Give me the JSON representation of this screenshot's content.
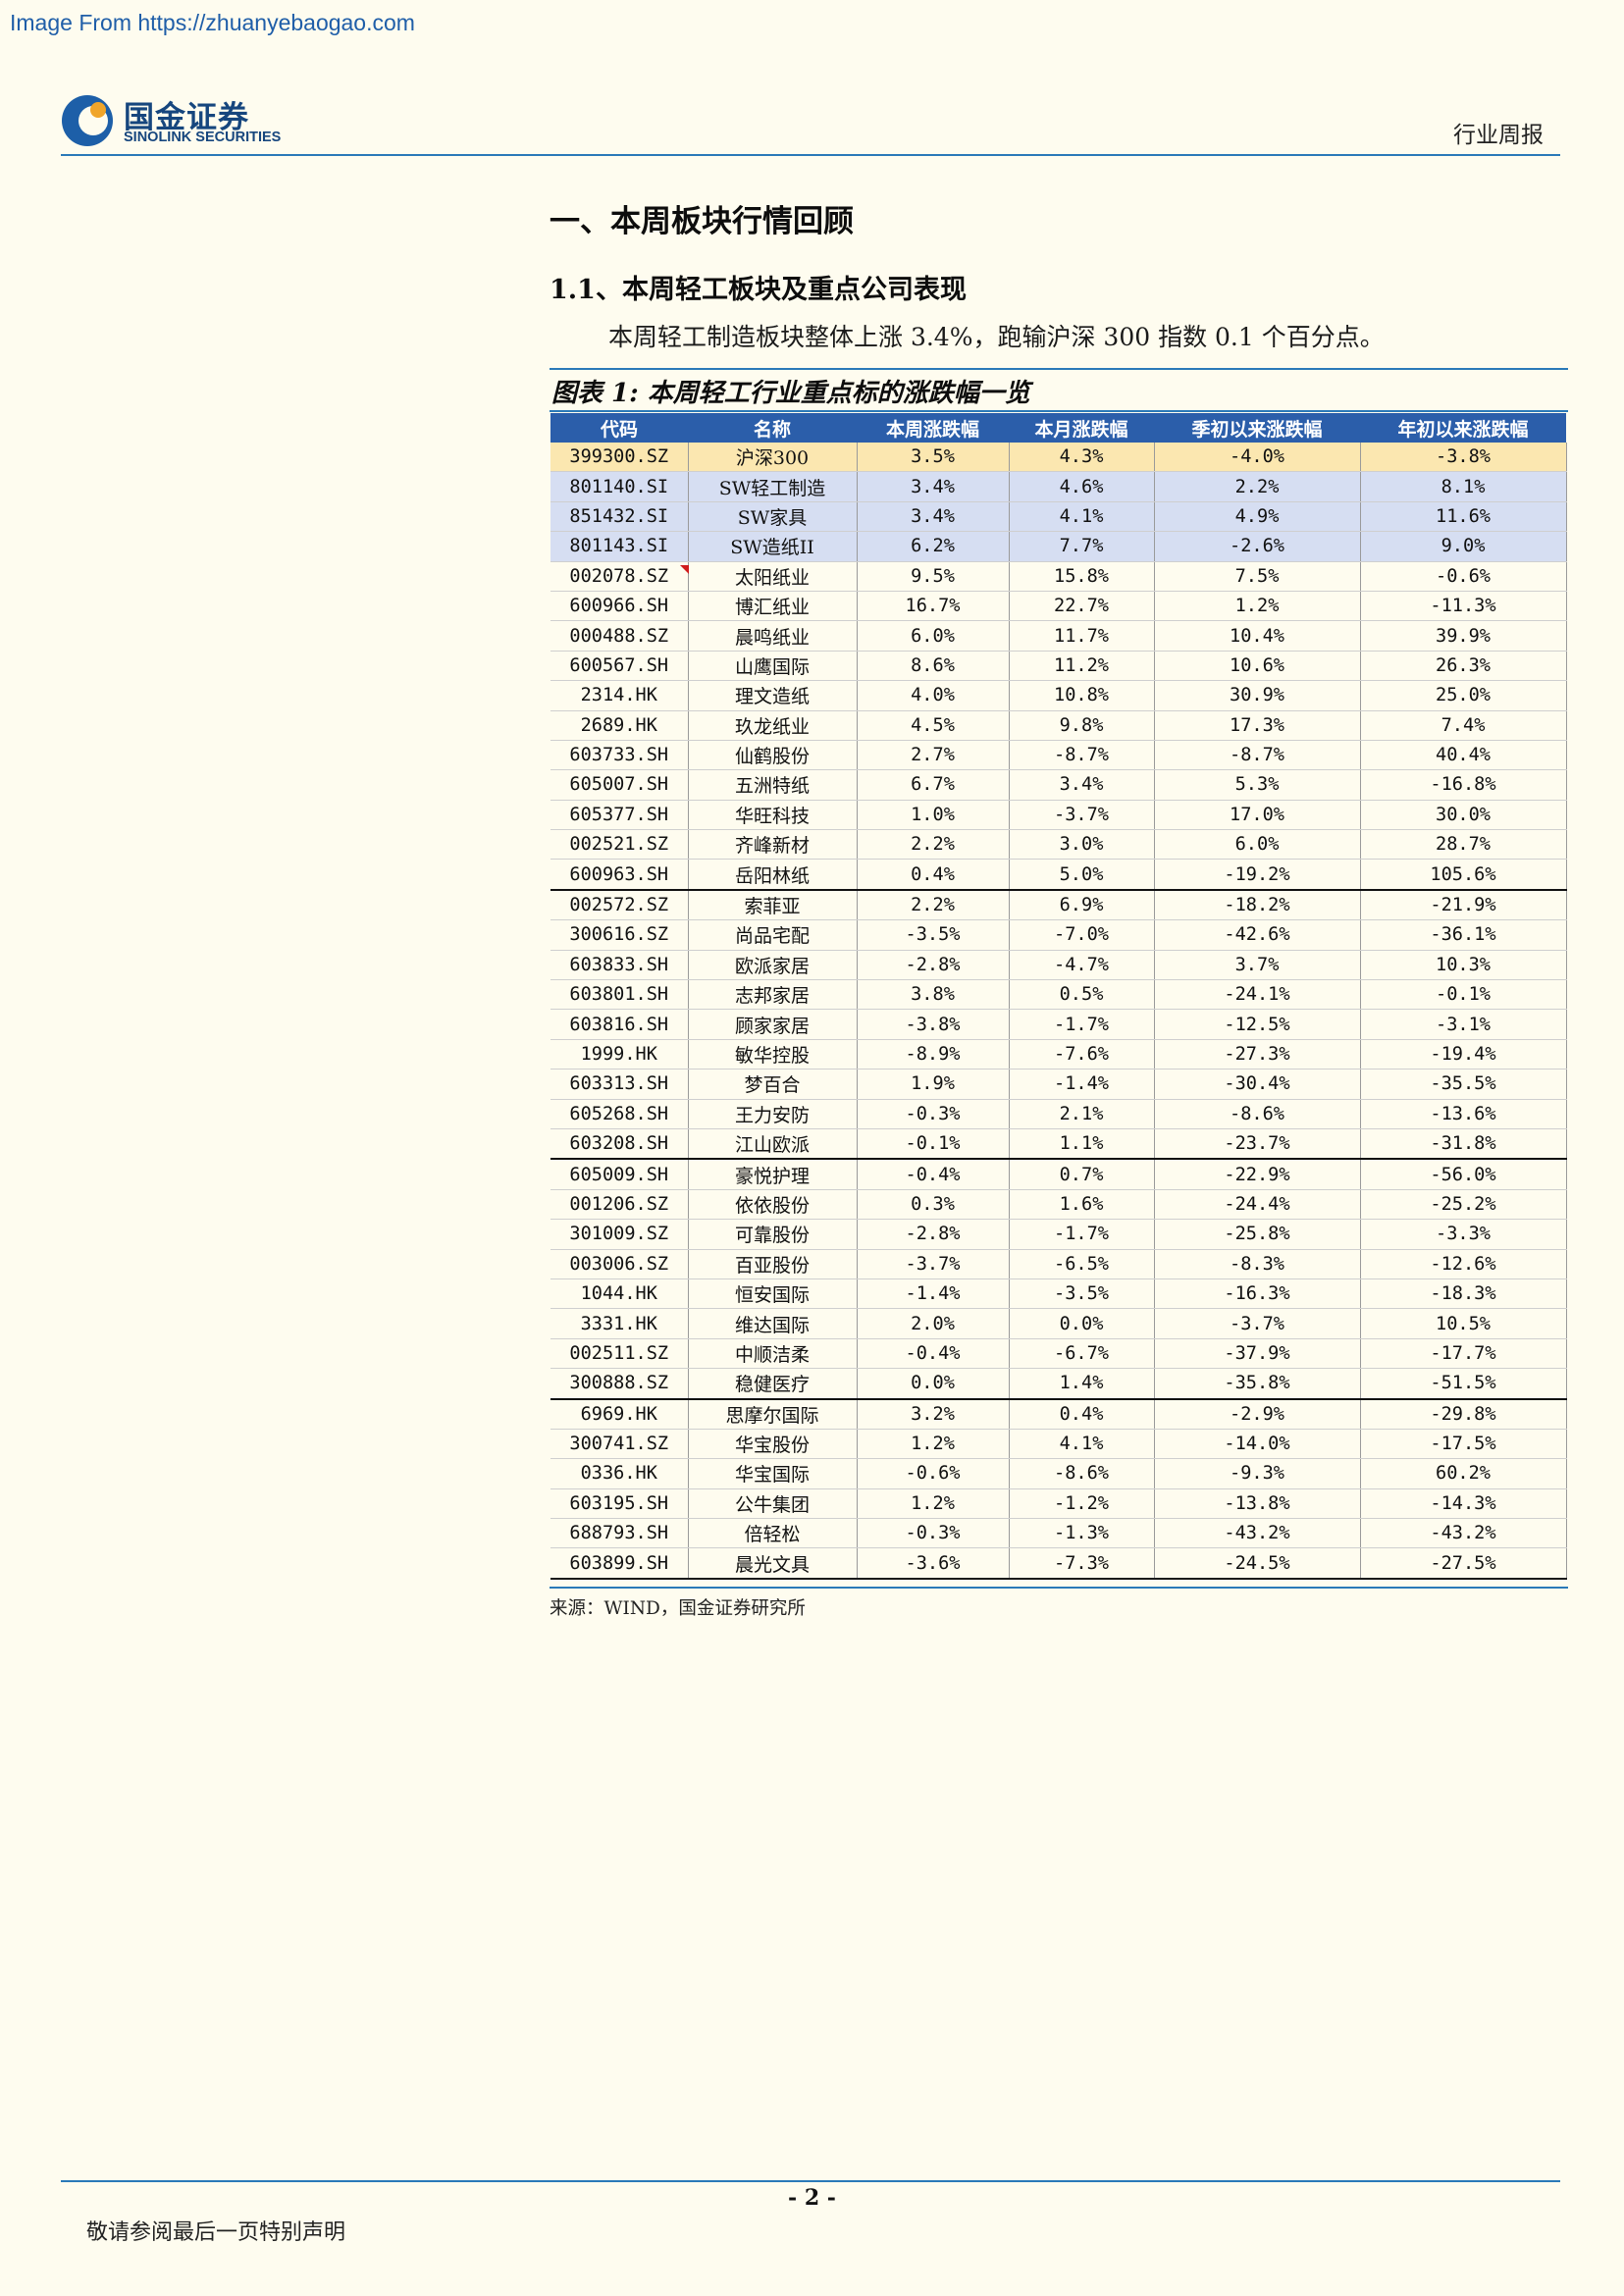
{
  "source_url": "Image From https://zhuanyebaogao.com",
  "logo": {
    "name_cn": "国金证券",
    "name_en": "SINOLINK SECURITIES"
  },
  "header": {
    "doc_type": "行业周报"
  },
  "section_title": "一、本周板块行情回顾",
  "subsection_title": "1.1、本周轻工板块及重点公司表现",
  "lead_text": "本周轻工制造板块整体上涨 3.4%，跑输沪深 300 指数 0.1 个百分点。",
  "figure_title": "图表 1:  本周轻工行业重点标的涨跌幅一览",
  "table": {
    "headers": [
      "代码",
      "名称",
      "本周涨跌幅",
      "本月涨跌幅",
      "季初以来涨跌幅",
      "年初以来涨跌幅"
    ],
    "rows": [
      [
        "399300.SZ",
        "沪深300",
        "3.5%",
        "4.3%",
        "-4.0%",
        "-3.8%"
      ],
      [
        "801140.SI",
        "SW轻工制造",
        "3.4%",
        "4.6%",
        "2.2%",
        "8.1%"
      ],
      [
        "851432.SI",
        "SW家具",
        "3.4%",
        "4.1%",
        "4.9%",
        "11.6%"
      ],
      [
        "801143.SI",
        "SW造纸II",
        "6.2%",
        "7.7%",
        "-2.6%",
        "9.0%"
      ],
      [
        "002078.SZ",
        "太阳纸业",
        "9.5%",
        "15.8%",
        "7.5%",
        "-0.6%"
      ],
      [
        "600966.SH",
        "博汇纸业",
        "16.7%",
        "22.7%",
        "1.2%",
        "-11.3%"
      ],
      [
        "000488.SZ",
        "晨鸣纸业",
        "6.0%",
        "11.7%",
        "10.4%",
        "39.9%"
      ],
      [
        "600567.SH",
        "山鹰国际",
        "8.6%",
        "11.2%",
        "10.6%",
        "26.3%"
      ],
      [
        "2314.HK",
        "理文造纸",
        "4.0%",
        "10.8%",
        "30.9%",
        "25.0%"
      ],
      [
        "2689.HK",
        "玖龙纸业",
        "4.5%",
        "9.8%",
        "17.3%",
        "7.4%"
      ],
      [
        "603733.SH",
        "仙鹤股份",
        "2.7%",
        "-8.7%",
        "-8.7%",
        "40.4%"
      ],
      [
        "605007.SH",
        "五洲特纸",
        "6.7%",
        "3.4%",
        "5.3%",
        "-16.8%"
      ],
      [
        "605377.SH",
        "华旺科技",
        "1.0%",
        "-3.7%",
        "17.0%",
        "30.0%"
      ],
      [
        "002521.SZ",
        "齐峰新材",
        "2.2%",
        "3.0%",
        "6.0%",
        "28.7%"
      ],
      [
        "600963.SH",
        "岳阳林纸",
        "0.4%",
        "5.0%",
        "-19.2%",
        "105.6%"
      ],
      [
        "002572.SZ",
        "索菲亚",
        "2.2%",
        "6.9%",
        "-18.2%",
        "-21.9%"
      ],
      [
        "300616.SZ",
        "尚品宅配",
        "-3.5%",
        "-7.0%",
        "-42.6%",
        "-36.1%"
      ],
      [
        "603833.SH",
        "欧派家居",
        "-2.8%",
        "-4.7%",
        "3.7%",
        "10.3%"
      ],
      [
        "603801.SH",
        "志邦家居",
        "3.8%",
        "0.5%",
        "-24.1%",
        "-0.1%"
      ],
      [
        "603816.SH",
        "顾家家居",
        "-3.8%",
        "-1.7%",
        "-12.5%",
        "-3.1%"
      ],
      [
        "1999.HK",
        "敏华控股",
        "-8.9%",
        "-7.6%",
        "-27.3%",
        "-19.4%"
      ],
      [
        "603313.SH",
        "梦百合",
        "1.9%",
        "-1.4%",
        "-30.4%",
        "-35.5%"
      ],
      [
        "605268.SH",
        "王力安防",
        "-0.3%",
        "2.1%",
        "-8.6%",
        "-13.6%"
      ],
      [
        "603208.SH",
        "江山欧派",
        "-0.1%",
        "1.1%",
        "-23.7%",
        "-31.8%"
      ],
      [
        "605009.SH",
        "豪悦护理",
        "-0.4%",
        "0.7%",
        "-22.9%",
        "-56.0%"
      ],
      [
        "001206.SZ",
        "依依股份",
        "0.3%",
        "1.6%",
        "-24.4%",
        "-25.2%"
      ],
      [
        "301009.SZ",
        "可靠股份",
        "-2.8%",
        "-1.7%",
        "-25.8%",
        "-3.3%"
      ],
      [
        "003006.SZ",
        "百亚股份",
        "-3.7%",
        "-6.5%",
        "-8.3%",
        "-12.6%"
      ],
      [
        "1044.HK",
        "恒安国际",
        "-1.4%",
        "-3.5%",
        "-16.3%",
        "-18.3%"
      ],
      [
        "3331.HK",
        "维达国际",
        "2.0%",
        "0.0%",
        "-3.7%",
        "10.5%"
      ],
      [
        "002511.SZ",
        "中顺洁柔",
        "-0.4%",
        "-6.7%",
        "-37.9%",
        "-17.7%"
      ],
      [
        "300888.SZ",
        "稳健医疗",
        "0.0%",
        "1.4%",
        "-35.8%",
        "-51.5%"
      ],
      [
        "6969.HK",
        "思摩尔国际",
        "3.2%",
        "0.4%",
        "-2.9%",
        "-29.8%"
      ],
      [
        "300741.SZ",
        "华宝股份",
        "1.2%",
        "4.1%",
        "-14.0%",
        "-17.5%"
      ],
      [
        "0336.HK",
        "华宝国际",
        "-0.6%",
        "-8.6%",
        "-9.3%",
        "60.2%"
      ],
      [
        "603195.SH",
        "公牛集团",
        "1.2%",
        "-1.2%",
        "-13.8%",
        "-14.3%"
      ],
      [
        "688793.SH",
        "倍轻松",
        "-0.3%",
        "-1.3%",
        "-43.2%",
        "-43.2%"
      ],
      [
        "603899.SH",
        "晨光文具",
        "-3.6%",
        "-7.3%",
        "-24.5%",
        "-27.5%"
      ]
    ]
  },
  "source_note": "来源：WIND，国金证券研究所",
  "page_number": "- 2 -",
  "footer_disclaimer": "敬请参阅最后一页特别声明",
  "colors": {
    "header_blue": "#2b5eaa",
    "rule_blue": "#2a79b8",
    "index_highlight": "#fbe7b0",
    "sector_highlight": "#d6def2",
    "page_background": "#fefcef"
  }
}
